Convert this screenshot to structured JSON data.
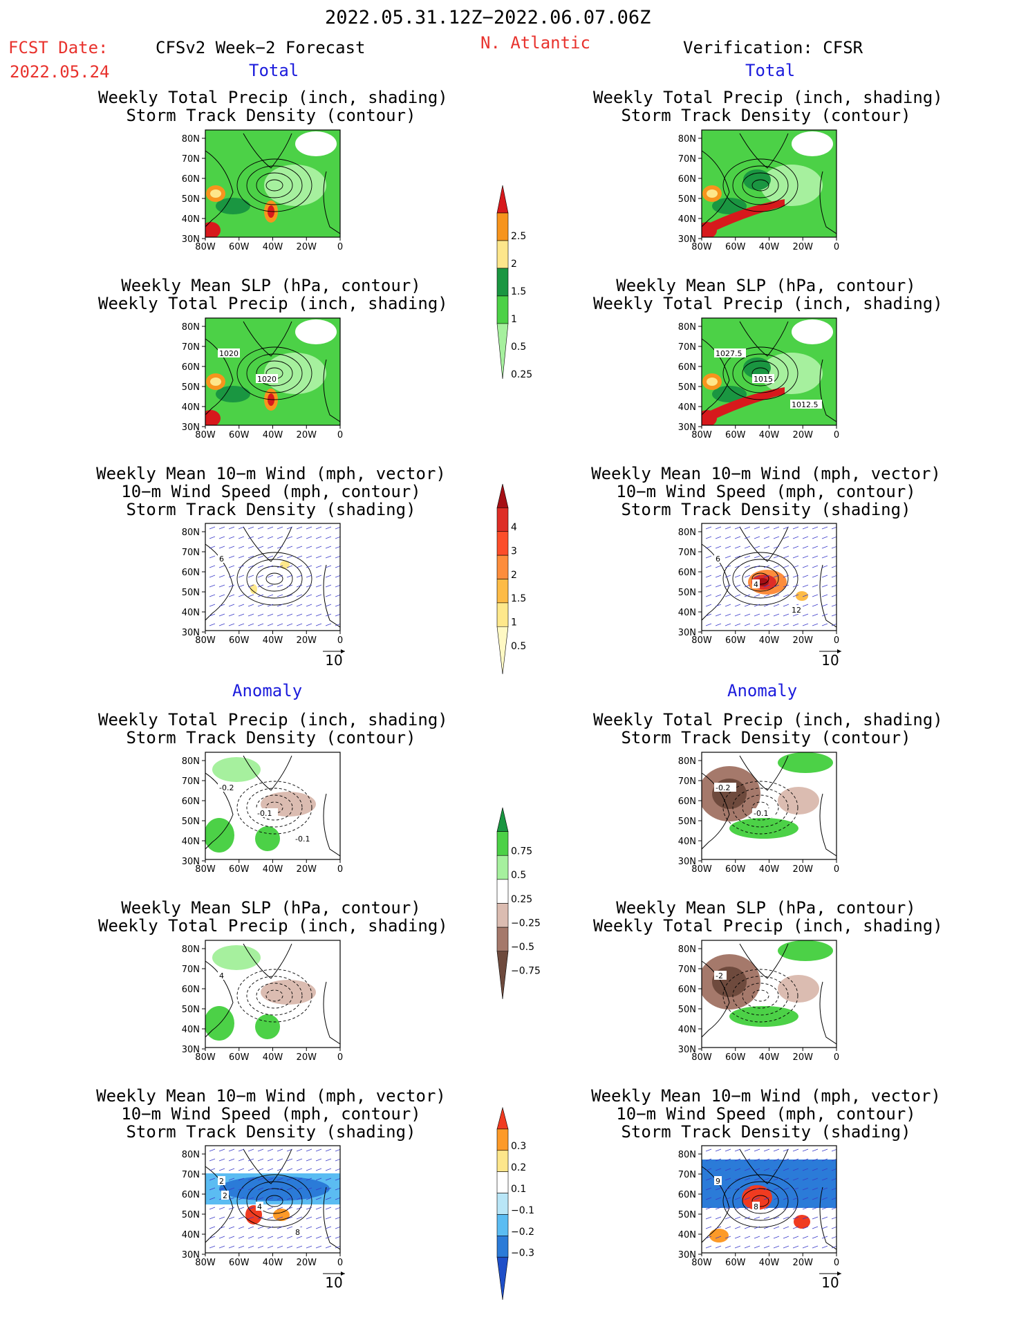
{
  "header": {
    "period": "2022.05.31.12Z−2022.06.07.06Z",
    "fcst_label": "FCST Date:",
    "fcst_date": "2022.05.24",
    "model": "CFSv2 Week−2 Forecast",
    "region": "N. Atlantic",
    "verification": "Verification: CFSR"
  },
  "sections": {
    "total": "Total",
    "anomaly": "Anomaly"
  },
  "panel_titles": {
    "precip_storm": [
      "Weekly Total Precip (inch, shading)",
      "Storm Track Density (contour)"
    ],
    "slp_precip": [
      "Weekly Mean SLP (hPa, contour)",
      "Weekly Total Precip (inch, shading)"
    ],
    "wind_storm": [
      "Weekly Mean 10−m Wind (mph, vector)",
      "10−m Wind Speed (mph, contour)",
      "Storm Track Density (shading)"
    ]
  },
  "axes": {
    "lat_ticks": [
      "80N",
      "70N",
      "60N",
      "50N",
      "40N",
      "30N"
    ],
    "lon_ticks": [
      "80W",
      "60W",
      "40W",
      "20W",
      "0"
    ]
  },
  "vector_ref": "10",
  "contour_labels": {
    "fc_slp_total": [
      "1020",
      "1020"
    ],
    "vf_slp_total": [
      "1027.5",
      "1015",
      "1012.5"
    ],
    "fc_wind_total": [
      "6"
    ],
    "vf_wind_total": [
      "6",
      "4",
      "12"
    ],
    "fc_storm_anom": [
      "-0.2",
      "-0.1",
      "-0.1"
    ],
    "vf_storm_anom": [
      "-0.2",
      "-0.1"
    ],
    "fc_slp_anom": [
      "4"
    ],
    "vf_slp_anom": [
      "-2"
    ],
    "fc_wind_anom": [
      "2",
      "4",
      "8",
      "2"
    ],
    "vf_wind_anom": [
      "9",
      "8"
    ]
  },
  "colorbars": {
    "precip_total": {
      "labels": [
        "2.5",
        "2",
        "1.5",
        "1",
        "0.5",
        "0.25"
      ],
      "colors": [
        "#d7191c",
        "#f7941d",
        "#fde68b",
        "#1a9641",
        "#4cd147",
        "#a6f09e"
      ]
    },
    "storm_total": {
      "labels": [
        "4",
        "3",
        "2",
        "1.5",
        "1",
        "0.5"
      ],
      "colors": [
        "#a50f15",
        "#de2d26",
        "#fc4e2a",
        "#fd8d3c",
        "#fdbb46",
        "#fee88b",
        "#fff9c4"
      ]
    },
    "precip_anom": {
      "labels": [
        "0.75",
        "0.5",
        "0.25",
        "−0.25",
        "−0.5",
        "−0.75"
      ],
      "colors": [
        "#1a9641",
        "#4cd147",
        "#a6f09e",
        "#ffffff",
        "#dbbcb1",
        "#a5796b",
        "#6e4a3d"
      ]
    },
    "storm_anom": {
      "labels": [
        "0.3",
        "0.2",
        "0.1",
        "−0.1",
        "−0.2",
        "−0.3"
      ],
      "colors": [
        "#f03b20",
        "#fd9a28",
        "#fde68b",
        "#ffffff",
        "#b9e6f7",
        "#5bbcf2",
        "#2b7bd8",
        "#1f4fc8"
      ]
    }
  },
  "colors": {
    "title_red": "#e8322d",
    "section_blue": "#1b1bdc",
    "contour_black": "#000000",
    "vector_blue": "#3838c8"
  }
}
